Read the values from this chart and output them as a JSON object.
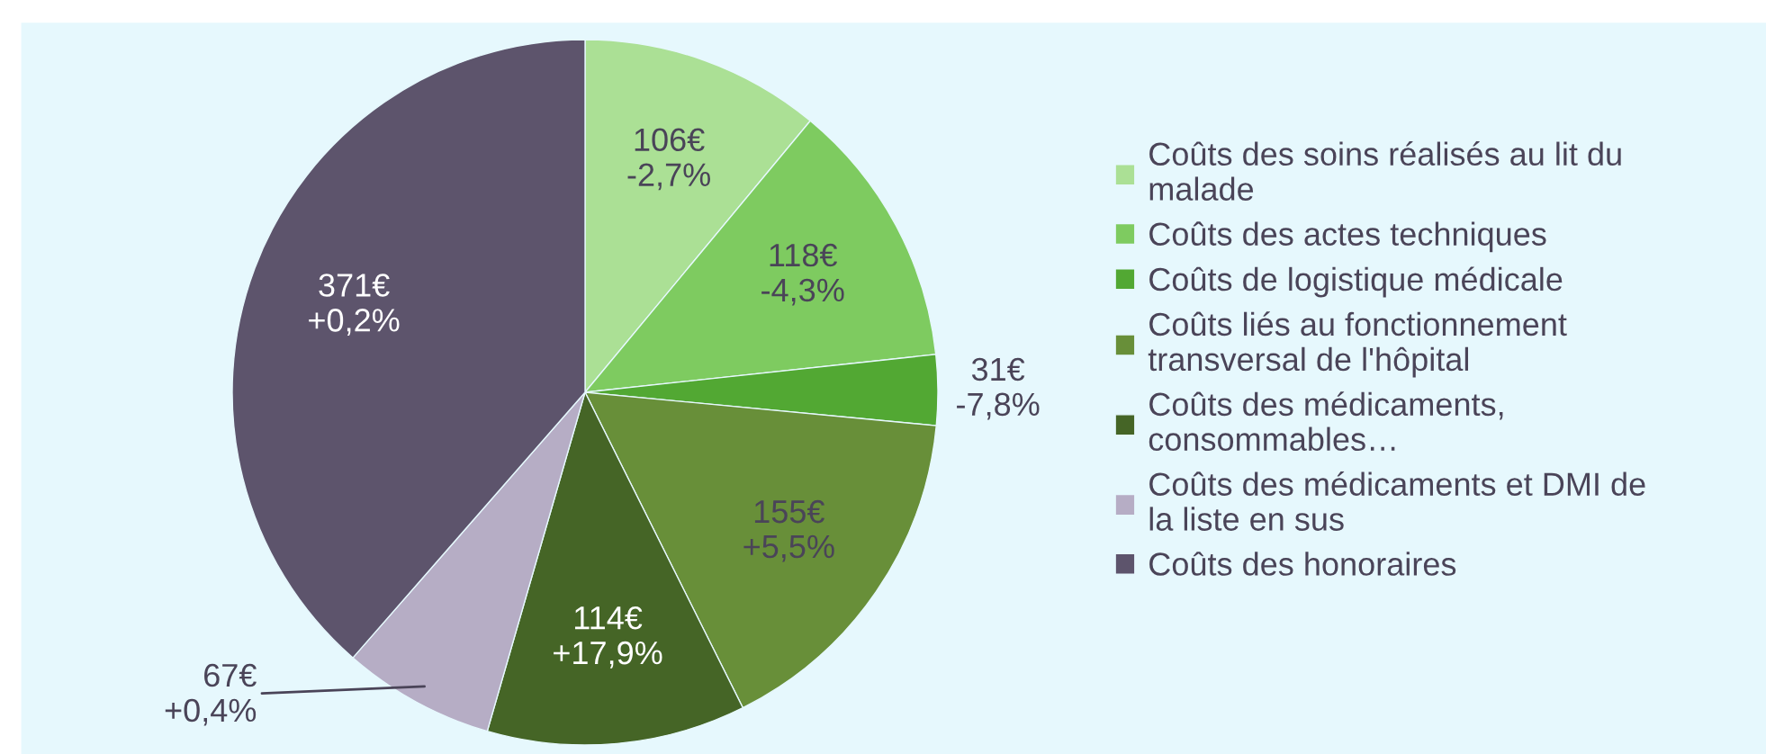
{
  "chart_data": {
    "type": "pie",
    "categories": [
      "Coûts des soins réalisés au lit du\nmalade",
      "Coûts des actes techniques",
      "Coûts de logistique médicale",
      "Coûts liés au fonctionnement\ntransversal de l'hôpital",
      "Coûts des médicaments,\nconsommables…",
      "Coûts des médicaments et DMI de\nla liste en sus",
      "Coûts des honoraires"
    ],
    "values": [
      106,
      118,
      31,
      155,
      114,
      67,
      371
    ],
    "colors": [
      "#abe095",
      "#7ecb60",
      "#52a833",
      "#688f39",
      "#456526",
      "#b6adc5",
      "#5d546c"
    ],
    "value_labels": [
      "106€\n-2,7%",
      "118€\n-4,3%",
      "31€\n-7,8%",
      "155€\n+5,5%",
      "114€\n+17,9%",
      "67€\n+0,4%",
      "371€\n+0,2%"
    ],
    "legend": "right"
  }
}
